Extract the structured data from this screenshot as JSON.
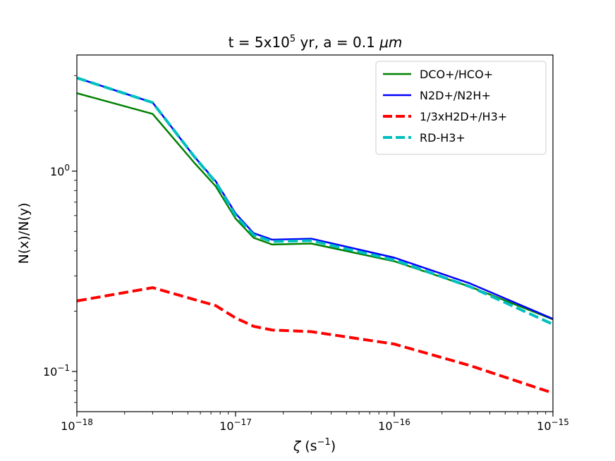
{
  "chart_data": {
    "type": "line",
    "title": "t = 5x10<sup>5</sup> yr, a = 0.1 μm",
    "title_parts": {
      "prefix": "t = 5x10",
      "exp": "5",
      "suffix": " yr, a = 0.1 ",
      "unit": "μm"
    },
    "xlabel_parts": {
      "symbol": "ζ",
      "text": " (s",
      "exp": "−1",
      "close": ")"
    },
    "ylabel": "N(x)/N(y)",
    "xscale": "log",
    "yscale": "log",
    "xlim": [
      1e-18,
      1e-15
    ],
    "ylim": [
      0.063,
      3.8
    ],
    "x_ticks": [
      {
        "value": 1e-18,
        "base": "10",
        "exp": "−18"
      },
      {
        "value": 1e-17,
        "base": "10",
        "exp": "−17"
      },
      {
        "value": 1e-16,
        "base": "10",
        "exp": "−16"
      },
      {
        "value": 1e-15,
        "base": "10",
        "exp": "−15"
      }
    ],
    "y_ticks": [
      {
        "value": 1.0,
        "base": "10",
        "exp": "0"
      },
      {
        "value": 0.1,
        "base": "10",
        "exp": "−1"
      }
    ],
    "legend_position": "top-right",
    "series": [
      {
        "name": "DCO+/HCO+",
        "color": "#008000",
        "dash": "solid",
        "x": [
          1e-18,
          3e-18,
          5.5e-18,
          7.5e-18,
          1e-17,
          1.3e-17,
          1.7e-17,
          3e-17,
          1e-16,
          3e-16,
          1e-15
        ],
        "y": [
          2.45,
          1.93,
          1.1,
          0.84,
          0.58,
          0.465,
          0.43,
          0.435,
          0.355,
          0.265,
          0.182
        ]
      },
      {
        "name": "N2D+/N2H+",
        "color": "#0000ff",
        "dash": "solid",
        "x": [
          1e-18,
          3e-18,
          5.5e-18,
          7.5e-18,
          1e-17,
          1.3e-17,
          1.7e-17,
          3e-17,
          1e-16,
          3e-16,
          1e-15
        ],
        "y": [
          2.92,
          2.2,
          1.18,
          0.89,
          0.615,
          0.49,
          0.455,
          0.46,
          0.37,
          0.275,
          0.183
        ]
      },
      {
        "name": "1/3xH2D+/H3+",
        "color": "#ff0000",
        "dash": "dashed",
        "x": [
          1e-18,
          3e-18,
          7.5e-18,
          1e-17,
          1.3e-17,
          1.7e-17,
          3e-17,
          1e-16,
          3e-16,
          1e-15
        ],
        "y": [
          0.225,
          0.262,
          0.213,
          0.185,
          0.168,
          0.161,
          0.158,
          0.137,
          0.107,
          0.078
        ]
      },
      {
        "name": "RD-H3+",
        "color": "#00bfbf",
        "dash": "dashed",
        "x": [
          1e-18,
          3e-18,
          5.5e-18,
          7.5e-18,
          1e-17,
          1.3e-17,
          1.7e-17,
          3e-17,
          1e-16,
          3e-16,
          1e-15
        ],
        "y": [
          2.92,
          2.2,
          1.18,
          0.88,
          0.6,
          0.48,
          0.445,
          0.45,
          0.36,
          0.265,
          0.172
        ]
      }
    ]
  }
}
